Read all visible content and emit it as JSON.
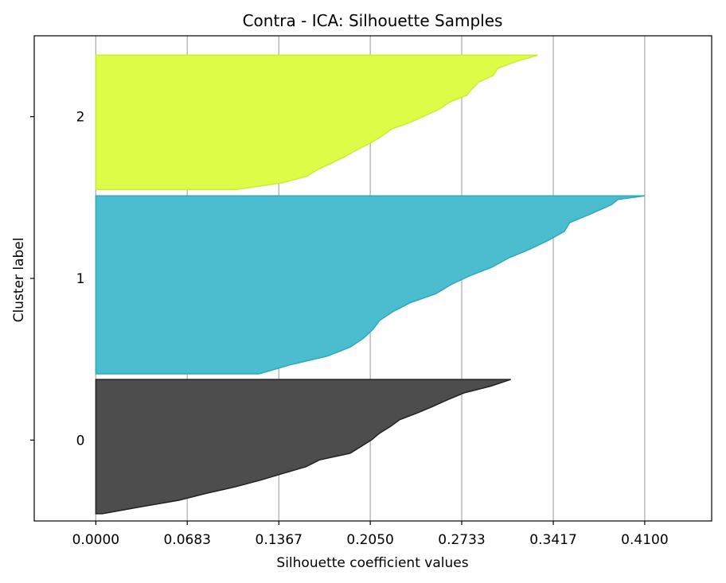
{
  "chart_data": {
    "type": "area",
    "title": "Contra - ICA: Silhouette Samples",
    "xlabel": "Silhouette coefficient values",
    "ylabel": "Cluster label",
    "xlim": [
      -0.046,
      0.46
    ],
    "ylim": [
      -0.5,
      2.5
    ],
    "grid": "vertical",
    "xticks": [
      0.0,
      0.0683,
      0.1367,
      0.205,
      0.2733,
      0.3417,
      0.41
    ],
    "xtick_labels": [
      "0.0000",
      "0.0683",
      "0.1367",
      "0.2050",
      "0.2733",
      "0.3417",
      "0.4100"
    ],
    "yticks": [
      0,
      1,
      2
    ],
    "ytick_labels": [
      "0",
      "1",
      "2"
    ],
    "series": [
      {
        "cluster": "0",
        "color": "#4d4d4d",
        "edge": "#222222",
        "y_range": [
          -0.455,
          0.375
        ],
        "profile": [
          [
            0.0,
            0.005
          ],
          [
            0.05,
            0.033
          ],
          [
            0.1,
            0.062
          ],
          [
            0.15,
            0.082
          ],
          [
            0.2,
            0.104
          ],
          [
            0.25,
            0.123
          ],
          [
            0.3,
            0.14
          ],
          [
            0.35,
            0.157
          ],
          [
            0.4,
            0.167
          ],
          [
            0.45,
            0.19
          ],
          [
            0.5,
            0.198
          ],
          [
            0.55,
            0.206
          ],
          [
            0.6,
            0.212
          ],
          [
            0.65,
            0.22
          ],
          [
            0.7,
            0.227
          ],
          [
            0.75,
            0.24
          ],
          [
            0.8,
            0.252
          ],
          [
            0.85,
            0.263
          ],
          [
            0.9,
            0.275
          ],
          [
            0.95,
            0.295
          ],
          [
            1.0,
            0.31
          ]
        ]
      },
      {
        "cluster": "1",
        "color": "#4bbdcf",
        "edge": "#2aa9bf",
        "y_range": [
          0.41,
          1.51
        ],
        "profile": [
          [
            0.0,
            0.122
          ],
          [
            0.05,
            0.145
          ],
          [
            0.1,
            0.173
          ],
          [
            0.15,
            0.19
          ],
          [
            0.2,
            0.2
          ],
          [
            0.25,
            0.207
          ],
          [
            0.3,
            0.212
          ],
          [
            0.35,
            0.222
          ],
          [
            0.4,
            0.235
          ],
          [
            0.45,
            0.254
          ],
          [
            0.5,
            0.265
          ],
          [
            0.55,
            0.279
          ],
          [
            0.6,
            0.296
          ],
          [
            0.65,
            0.308
          ],
          [
            0.7,
            0.324
          ],
          [
            0.75,
            0.338
          ],
          [
            0.8,
            0.35
          ],
          [
            0.85,
            0.354
          ],
          [
            0.9,
            0.37
          ],
          [
            0.95,
            0.385
          ],
          [
            0.98,
            0.39
          ],
          [
            1.0,
            0.41
          ]
        ]
      },
      {
        "cluster": "2",
        "color": "#dcfc48",
        "edge": "#c9ef2a",
        "y_range": [
          1.55,
          2.38
        ],
        "profile": [
          [
            0.0,
            0.105
          ],
          [
            0.05,
            0.14
          ],
          [
            0.1,
            0.158
          ],
          [
            0.15,
            0.166
          ],
          [
            0.2,
            0.177
          ],
          [
            0.25,
            0.187
          ],
          [
            0.3,
            0.196
          ],
          [
            0.35,
            0.206
          ],
          [
            0.4,
            0.214
          ],
          [
            0.45,
            0.221
          ],
          [
            0.5,
            0.235
          ],
          [
            0.55,
            0.246
          ],
          [
            0.6,
            0.257
          ],
          [
            0.65,
            0.264
          ],
          [
            0.7,
            0.277
          ],
          [
            0.75,
            0.281
          ],
          [
            0.8,
            0.286
          ],
          [
            0.85,
            0.297
          ],
          [
            0.9,
            0.3
          ],
          [
            0.95,
            0.313
          ],
          [
            1.0,
            0.33
          ]
        ]
      }
    ]
  }
}
